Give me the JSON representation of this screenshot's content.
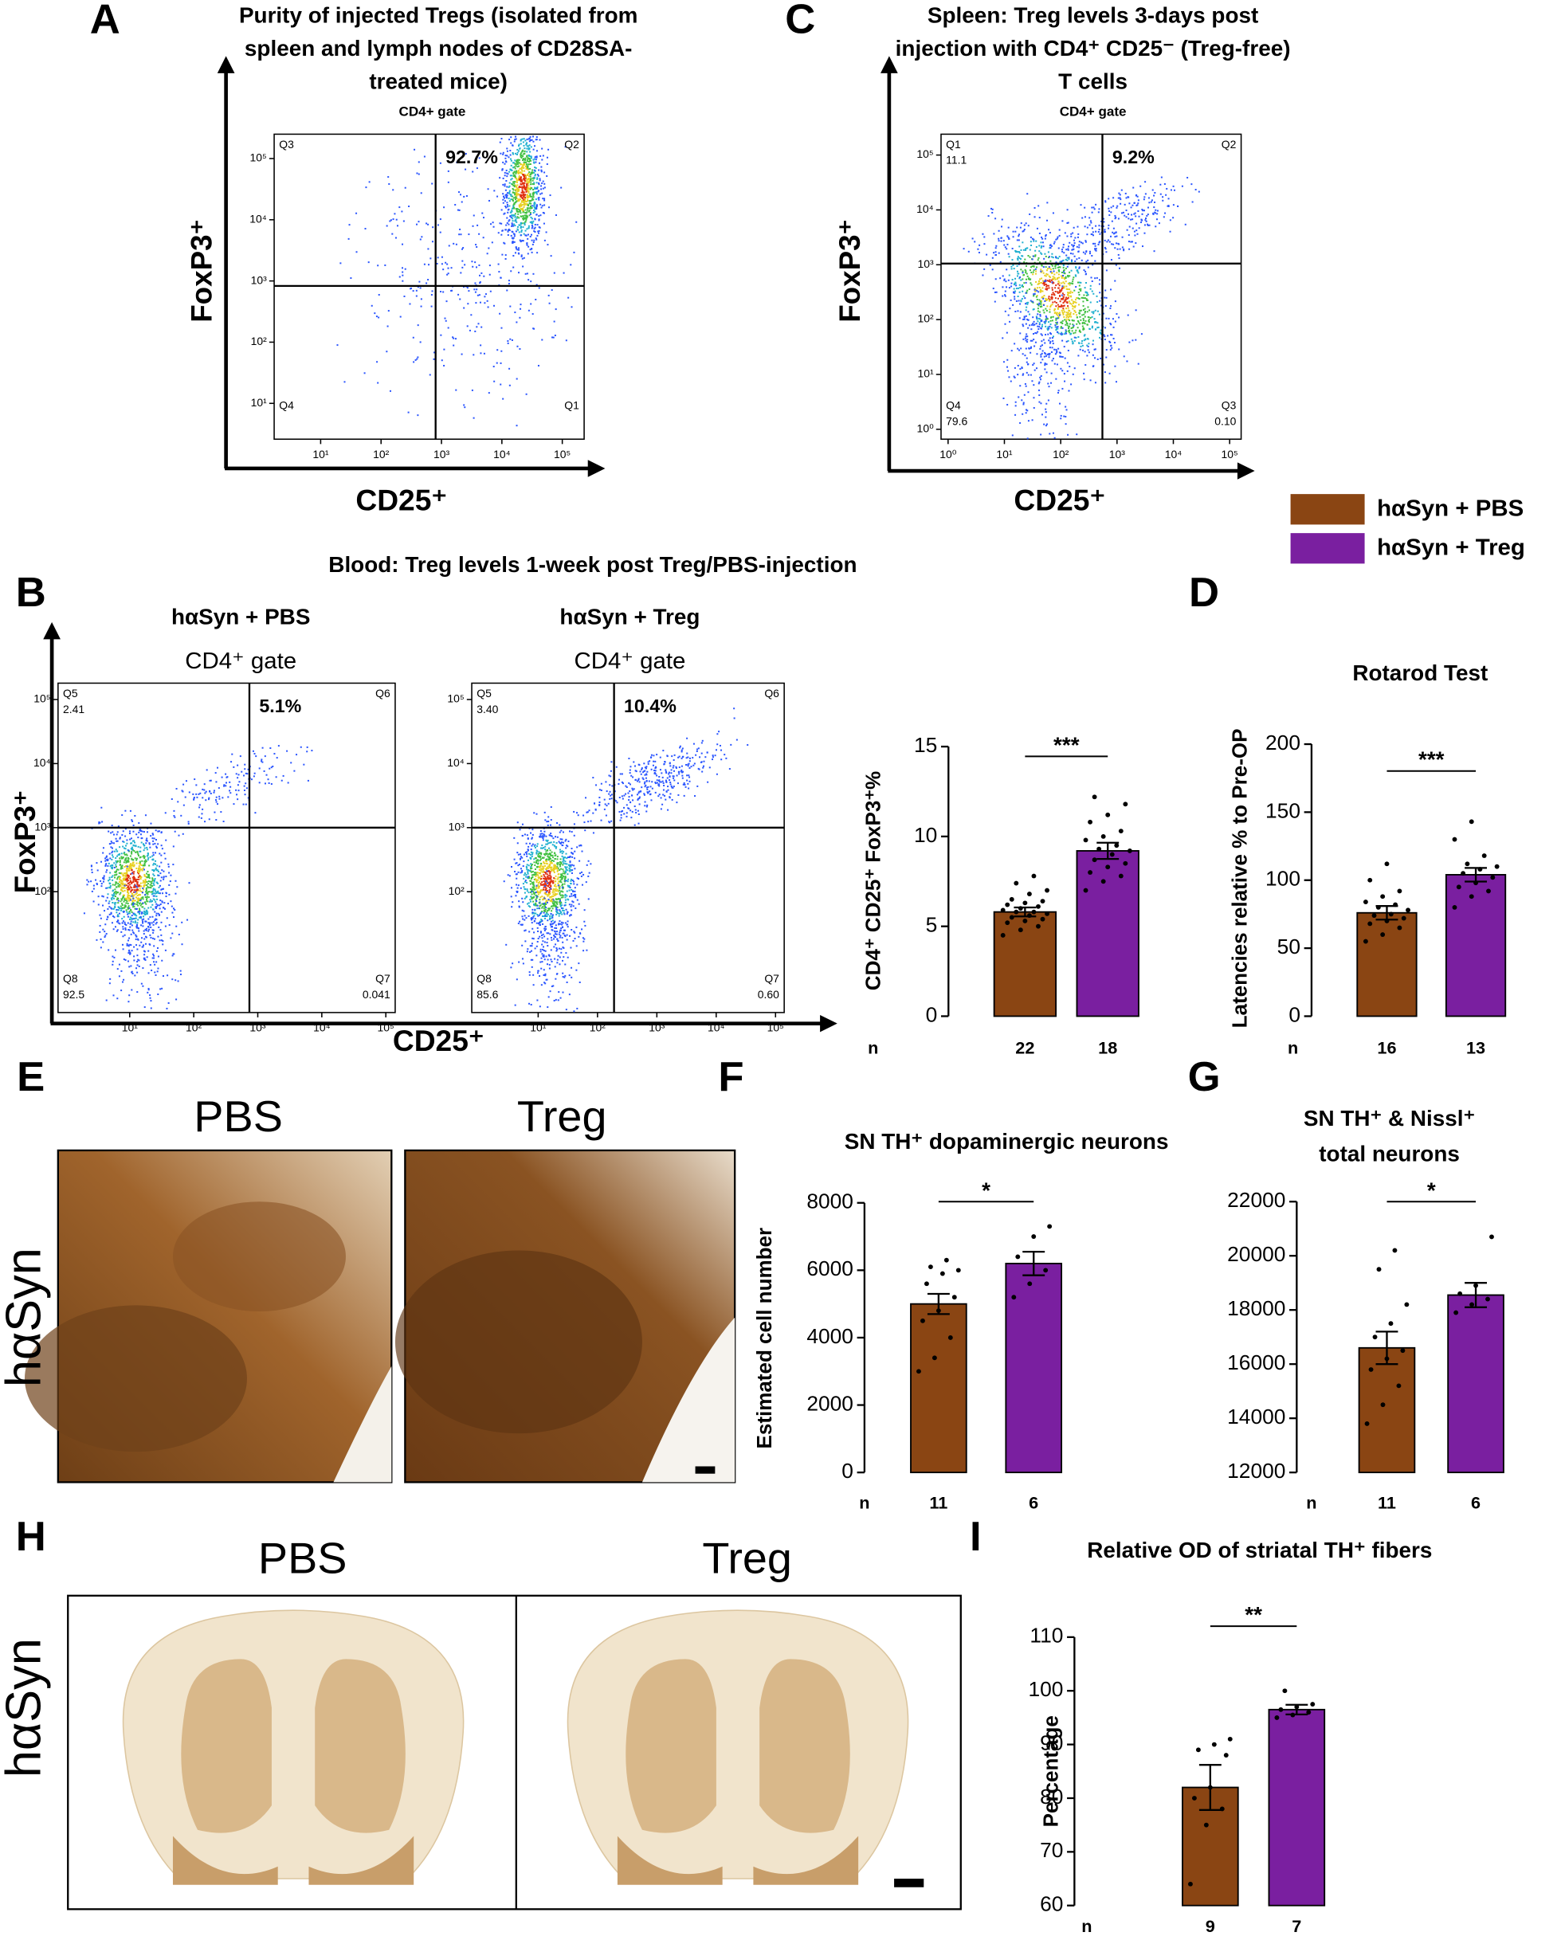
{
  "panel_letters": [
    "A",
    "B",
    "C",
    "D",
    "E",
    "F",
    "G",
    "H",
    "I"
  ],
  "legend": [
    {
      "name": "hαSyn + PBS",
      "color": "#8a4513"
    },
    {
      "name": "hαSyn + Treg",
      "color": "#7a1fa0"
    }
  ],
  "flow": {
    "panel_a": {
      "title": [
        "Purity of injected Tregs (isolated from",
        "spleen and lymph nodes of CD28SA-",
        "treated mice)"
      ],
      "gate": "CD4+ gate",
      "x_label": "CD25⁺",
      "y_label": "FoxP3⁺",
      "percent": "92.7%",
      "log": true,
      "xlim": [
        1.7,
        230000
      ],
      "ylim": [
        2.6,
        250000
      ],
      "gates": [
        800,
        830
      ],
      "xticks": [
        {
          "value": 10,
          "label": "10¹"
        },
        {
          "value": 100,
          "label": "10²"
        },
        {
          "value": 1000,
          "label": "10³"
        },
        {
          "value": 10000,
          "label": "10⁴"
        },
        {
          "value": 100000,
          "label": "10⁵"
        }
      ],
      "yticks": [
        {
          "value": 10,
          "label": "10¹"
        },
        {
          "value": 100,
          "label": "10²"
        },
        {
          "value": 1000,
          "label": "10³"
        },
        {
          "value": 10000,
          "label": "10⁴"
        },
        {
          "value": 100000,
          "label": "10⁵"
        }
      ],
      "quadrants": [
        {
          "name": "Q3"
        },
        {
          "name": "Q2"
        },
        {
          "name": "Q4"
        },
        {
          "name": "Q1"
        }
      ]
    },
    "panel_c": {
      "title": [
        "Spleen: Treg levels 3-days post",
        "injection with CD4⁺ CD25⁻ (Treg-free)",
        "T cells"
      ],
      "gate": "CD4+ gate",
      "x_label": "CD25⁺",
      "y_label": "FoxP3⁺",
      "percent": "9.2%",
      "log": true,
      "xlim": [
        0.75,
        160000
      ],
      "ylim": [
        0.66,
        240000
      ],
      "gates": [
        550,
        1050
      ],
      "xticks": [
        {
          "value": 1,
          "label": "10⁰"
        },
        {
          "value": 10,
          "label": "10¹"
        },
        {
          "value": 100,
          "label": "10²"
        },
        {
          "value": 1000,
          "label": "10³"
        },
        {
          "value": 10000,
          "label": "10⁴"
        },
        {
          "value": 100000,
          "label": "10⁵"
        }
      ],
      "yticks": [
        {
          "value": 1,
          "label": "10⁰"
        },
        {
          "value": 10,
          "label": "10¹"
        },
        {
          "value": 100,
          "label": "10²"
        },
        {
          "value": 1000,
          "label": "10³"
        },
        {
          "value": 10000,
          "label": "10⁴"
        },
        {
          "value": 100000,
          "label": "10⁵"
        }
      ],
      "quadrants": [
        {
          "name": "Q1",
          "value": "11.1"
        },
        {
          "name": "Q2"
        },
        {
          "name": "Q4",
          "value": "79.6"
        },
        {
          "name": "Q3",
          "value": "0.10"
        }
      ]
    },
    "panel_b": {
      "title": "Blood: Treg levels 1-week post Treg/PBS-injection",
      "x_label": "CD25⁺",
      "y_label": "FoxP3⁺",
      "plots": [
        {
          "title": "hαSyn + PBS",
          "gate": "CD4⁺ gate",
          "percent": "5.1%",
          "log": true,
          "xlim": [
            0.76,
            140000
          ],
          "ylim": [
            1.3,
            180000
          ],
          "gates": [
            740,
            1000
          ],
          "xticks": [
            {
              "value": 10,
              "label": "10¹"
            },
            {
              "value": 100,
              "label": "10²"
            },
            {
              "value": 1000,
              "label": "10³"
            },
            {
              "value": 10000,
              "label": "10⁴"
            },
            {
              "value": 100000,
              "label": "10⁵"
            }
          ],
          "yticks": [
            {
              "value": 100,
              "label": "10²"
            },
            {
              "value": 1000,
              "label": "10³"
            },
            {
              "value": 10000,
              "label": "10⁴"
            },
            {
              "value": 100000,
              "label": "10⁵"
            }
          ],
          "quadrants": [
            {
              "name": "Q5",
              "value": "2.41"
            },
            {
              "name": "Q6"
            },
            {
              "name": "Q8",
              "value": "92.5"
            },
            {
              "name": "Q7",
              "value": "0.041"
            }
          ]
        },
        {
          "title": "hαSyn + Treg",
          "gate": "CD4⁺ gate",
          "percent": "10.4%",
          "log": true,
          "xlim": [
            0.76,
            140000
          ],
          "ylim": [
            1.3,
            180000
          ],
          "gates": [
            190,
            1000
          ],
          "xticks": [
            {
              "value": 10,
              "label": "10¹"
            },
            {
              "value": 100,
              "label": "10²"
            },
            {
              "value": 1000,
              "label": "10³"
            },
            {
              "value": 10000,
              "label": "10⁴"
            },
            {
              "value": 100000,
              "label": "10⁵"
            }
          ],
          "yticks": [
            {
              "value": 100,
              "label": "10²"
            },
            {
              "value": 1000,
              "label": "10³"
            },
            {
              "value": 10000,
              "label": "10⁴"
            },
            {
              "value": 100000,
              "label": "10⁵"
            }
          ],
          "quadrants": [
            {
              "name": "Q5",
              "value": "3.40"
            },
            {
              "name": "Q6"
            },
            {
              "name": "Q8",
              "value": "85.6"
            },
            {
              "name": "Q7",
              "value": "0.60"
            }
          ]
        }
      ]
    }
  },
  "histology_e": {
    "labels": [
      "PBS",
      "Treg"
    ],
    "row_label": "hαSyn"
  },
  "histology_h": {
    "labels": [
      "PBS",
      "Treg"
    ],
    "row_label": "hαSyn"
  },
  "chart_data": [
    {
      "type": "bar",
      "y_label": "CD4⁺ CD25⁺ FoxP3⁺%",
      "ylim": [
        0,
        15
      ],
      "yticks": [
        0,
        5,
        10,
        15
      ],
      "values": [
        5.8,
        9.2
      ],
      "errors": [
        0.25,
        0.45
      ],
      "colors": [
        "#8a4513",
        "#7a1fa0"
      ],
      "significance": "***",
      "n_label": "n",
      "n_values": [
        22,
        18
      ],
      "points": [
        [
          4.5,
          4.8,
          5.0,
          5.2,
          5.3,
          5.4,
          5.5,
          5.6,
          5.7,
          5.8,
          5.8,
          5.9,
          6.0,
          6.1,
          6.2,
          6.3,
          6.4,
          6.5,
          6.8,
          7.0,
          7.4,
          7.8
        ],
        [
          7.0,
          7.5,
          7.8,
          8.0,
          8.3,
          8.5,
          8.7,
          9.0,
          9.2,
          9.3,
          9.5,
          9.8,
          10.0,
          10.3,
          10.8,
          11.2,
          11.8,
          12.2
        ]
      ]
    },
    {
      "type": "bar",
      "title": [
        "Rotarod Test"
      ],
      "y_label": "Latencies relative % to Pre-OP",
      "ylim": [
        0,
        200
      ],
      "yticks": [
        0,
        50,
        100,
        150,
        200
      ],
      "values": [
        76,
        104
      ],
      "errors": [
        5,
        5
      ],
      "colors": [
        "#8a4513",
        "#7a1fa0"
      ],
      "significance": "***",
      "n_label": "n",
      "n_values": [
        16,
        13
      ],
      "points": [
        [
          55,
          60,
          65,
          68,
          70,
          72,
          74,
          75,
          78,
          80,
          82,
          84,
          88,
          92,
          100,
          112
        ],
        [
          80,
          88,
          92,
          95,
          98,
          102,
          105,
          108,
          110,
          112,
          118,
          130,
          143
        ]
      ]
    },
    {
      "type": "bar",
      "title": [
        "SN TH⁺ dopaminergic neurons"
      ],
      "y_label": "Estimated cell number",
      "ylim": [
        0,
        8000
      ],
      "yticks": [
        0,
        2000,
        4000,
        6000,
        8000
      ],
      "values": [
        5000,
        6200
      ],
      "errors": [
        300,
        350
      ],
      "colors": [
        "#8a4513",
        "#7a1fa0"
      ],
      "significance": "*",
      "n_label": "n",
      "n_values": [
        11,
        6
      ],
      "points": [
        [
          3000,
          3400,
          4000,
          4500,
          4800,
          5200,
          5600,
          5900,
          6000,
          6100,
          6300
        ],
        [
          5200,
          5600,
          6000,
          6400,
          7000,
          7300
        ]
      ]
    },
    {
      "type": "bar",
      "title": [
        "SN TH⁺ & Nissl⁺",
        "total neurons"
      ],
      "ylim": [
        12000,
        22000
      ],
      "yticks": [
        12000,
        14000,
        16000,
        18000,
        20000,
        22000
      ],
      "values": [
        16600,
        18550
      ],
      "errors": [
        600,
        450
      ],
      "colors": [
        "#8a4513",
        "#7a1fa0"
      ],
      "significance": "*",
      "n_label": "n",
      "n_values": [
        11,
        6
      ],
      "points": [
        [
          13800,
          14500,
          15200,
          15800,
          16200,
          16500,
          17000,
          17500,
          18200,
          19500,
          20200
        ],
        [
          17900,
          18200,
          18400,
          18600,
          18900,
          20700
        ]
      ]
    },
    {
      "type": "bar",
      "title": [
        "Relative OD of striatal TH⁺ fibers"
      ],
      "y_label": "Percentage",
      "ylim": [
        60,
        110
      ],
      "yticks": [
        60,
        70,
        80,
        90,
        100,
        110
      ],
      "values": [
        82,
        96.5
      ],
      "errors": [
        4.2,
        0.9
      ],
      "colors": [
        "#8a4513",
        "#7a1fa0"
      ],
      "significance": "**",
      "n_label": "n",
      "n_values": [
        9,
        7
      ],
      "points": [
        [
          64,
          75,
          78,
          80,
          82,
          88,
          89,
          90,
          91
        ],
        [
          95,
          95.5,
          96,
          96.5,
          97,
          97.5,
          100
        ]
      ]
    }
  ]
}
